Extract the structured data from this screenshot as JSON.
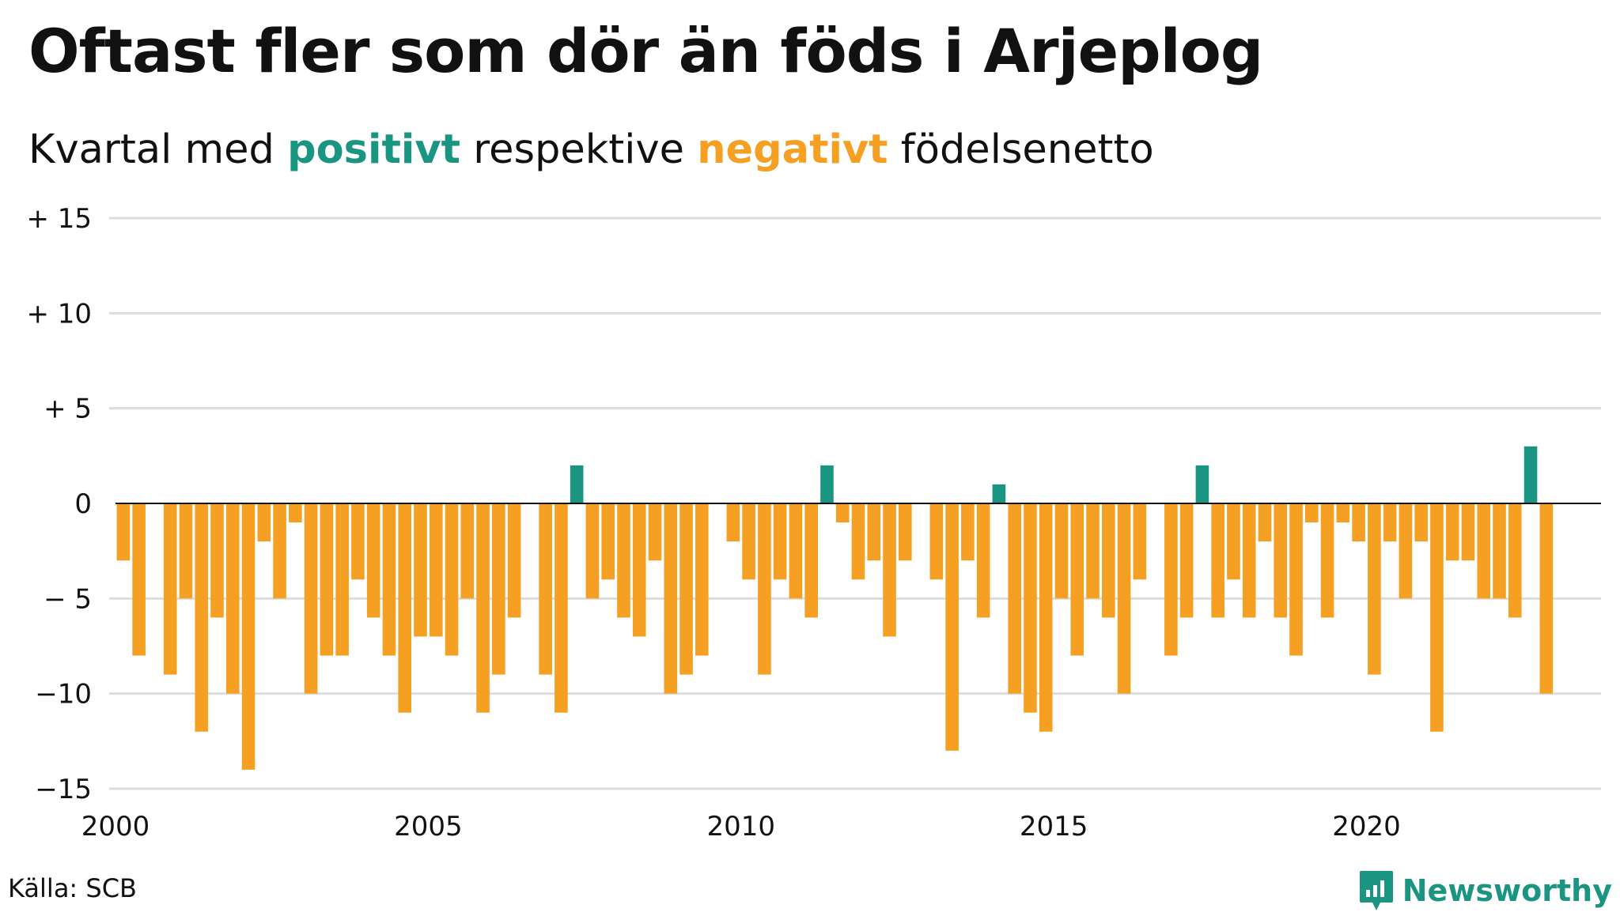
{
  "title": "Oftast fler som dör än föds i Arjeplog",
  "subtitle": {
    "prefix": "Kvartal med",
    "positive_word": "positivt",
    "middle": "respektive",
    "negative_word": "negativt",
    "suffix": "födelsenetto"
  },
  "source": "Källa: SCB",
  "brand": "Newsworthy",
  "colors": {
    "positive": "#1a9582",
    "negative": "#f5a022",
    "grid": "#dddddd",
    "zero_line": "#111111"
  },
  "chart_data": {
    "type": "bar",
    "x_start": 2000,
    "x_step": 0.25,
    "xlim": [
      2000,
      2023.75
    ],
    "ylim": [
      -15,
      15
    ],
    "yticks": [
      15,
      10,
      5,
      0,
      -5,
      -10,
      -15
    ],
    "ytick_labels": [
      "+ 15",
      "+ 10",
      "+  5",
      "0",
      "− 5",
      "−10",
      "−15"
    ],
    "xticks": [
      2000,
      2005,
      2010,
      2015,
      2020
    ],
    "xtick_labels": [
      "2000",
      "2005",
      "2010",
      "2015",
      "2020"
    ],
    "grid": "horizontal",
    "values": [
      -3,
      -8,
      0,
      -9,
      -5,
      -12,
      -6,
      -10,
      -14,
      -2,
      -5,
      -1,
      -10,
      -8,
      -8,
      -4,
      -6,
      -8,
      -11,
      -7,
      -7,
      -8,
      -5,
      -11,
      -9,
      -6,
      0,
      -9,
      -11,
      2,
      -5,
      -4,
      -6,
      -7,
      -3,
      -10,
      -9,
      -8,
      0,
      -2,
      -4,
      -9,
      -4,
      -5,
      -6,
      2,
      -1,
      -4,
      -3,
      -7,
      -3,
      0,
      -4,
      -13,
      -3,
      -6,
      1,
      -10,
      -11,
      -12,
      -5,
      -8,
      -5,
      -6,
      -10,
      -4,
      0,
      -8,
      -6,
      2,
      -6,
      -4,
      -6,
      -2,
      -6,
      -8,
      -1,
      -6,
      -1,
      -2,
      -9,
      -2,
      -5,
      -2,
      -12,
      -3,
      -3,
      -5,
      -5,
      -6,
      3,
      -10
    ]
  }
}
